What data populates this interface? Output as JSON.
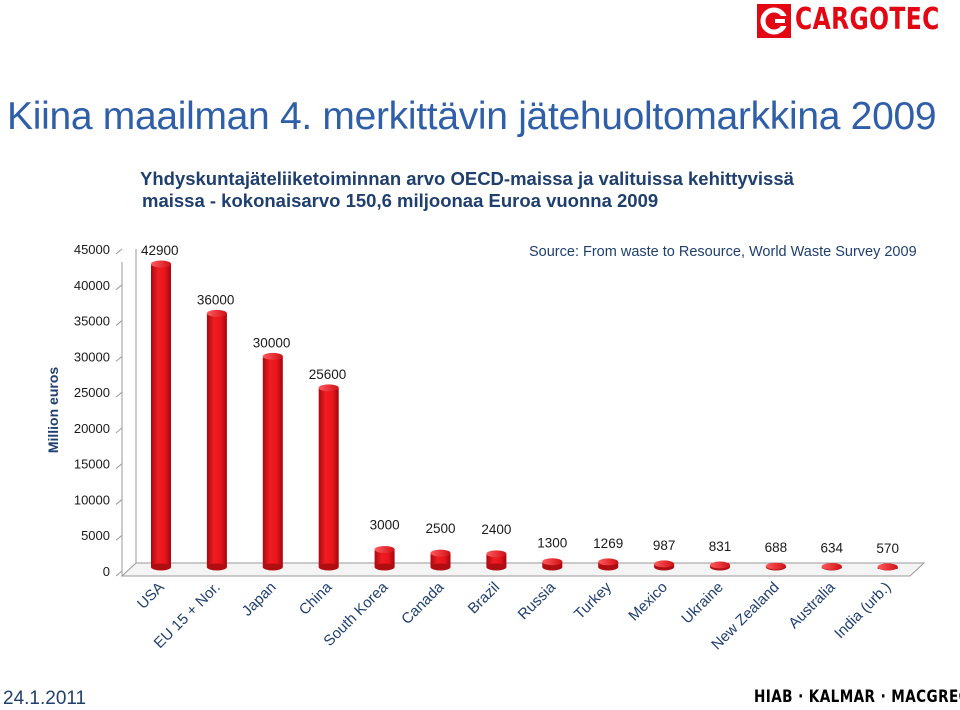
{
  "brand": {
    "name": "CARGOTEC",
    "bottom": "HIAB · KALMAR · MACGREGOR",
    "color": "#e30613"
  },
  "slide": {
    "title": "Kiina maailman 4. merkittävin jätehuoltomarkkina 2009",
    "subtitle_line1": "Yhdyskuntajäteliiketoiminnan arvo OECD-maissa ja valituissa kehittyvissä",
    "subtitle_line2": "maissa - kokonaisarvo 150,6 miljoonaa Euroa vuonna 2009",
    "date": "24.1.2011"
  },
  "chart_data": {
    "type": "bar",
    "source": "Source: From waste to Resource, World Waste Survey 2009",
    "ylabel": "Million euros",
    "ylim": [
      0,
      45000
    ],
    "yticks": [
      "0",
      "5000",
      "10000",
      "15000",
      "20000",
      "25000",
      "30000",
      "35000",
      "40000",
      "45000"
    ],
    "categories": [
      "USA",
      "EU 15 + Nor.",
      "Japan",
      "China",
      "South Korea",
      "Canada",
      "Brazil",
      "Russia",
      "Turkey",
      "Mexico",
      "Ukraine",
      "New Zealand",
      "Australia",
      "India (urb.)"
    ],
    "values": [
      42900,
      36000,
      30000,
      25600,
      3000,
      2500,
      2400,
      1300,
      1269,
      987,
      831,
      688,
      634,
      570
    ],
    "bar_color": "#e8141b",
    "grid": false
  }
}
